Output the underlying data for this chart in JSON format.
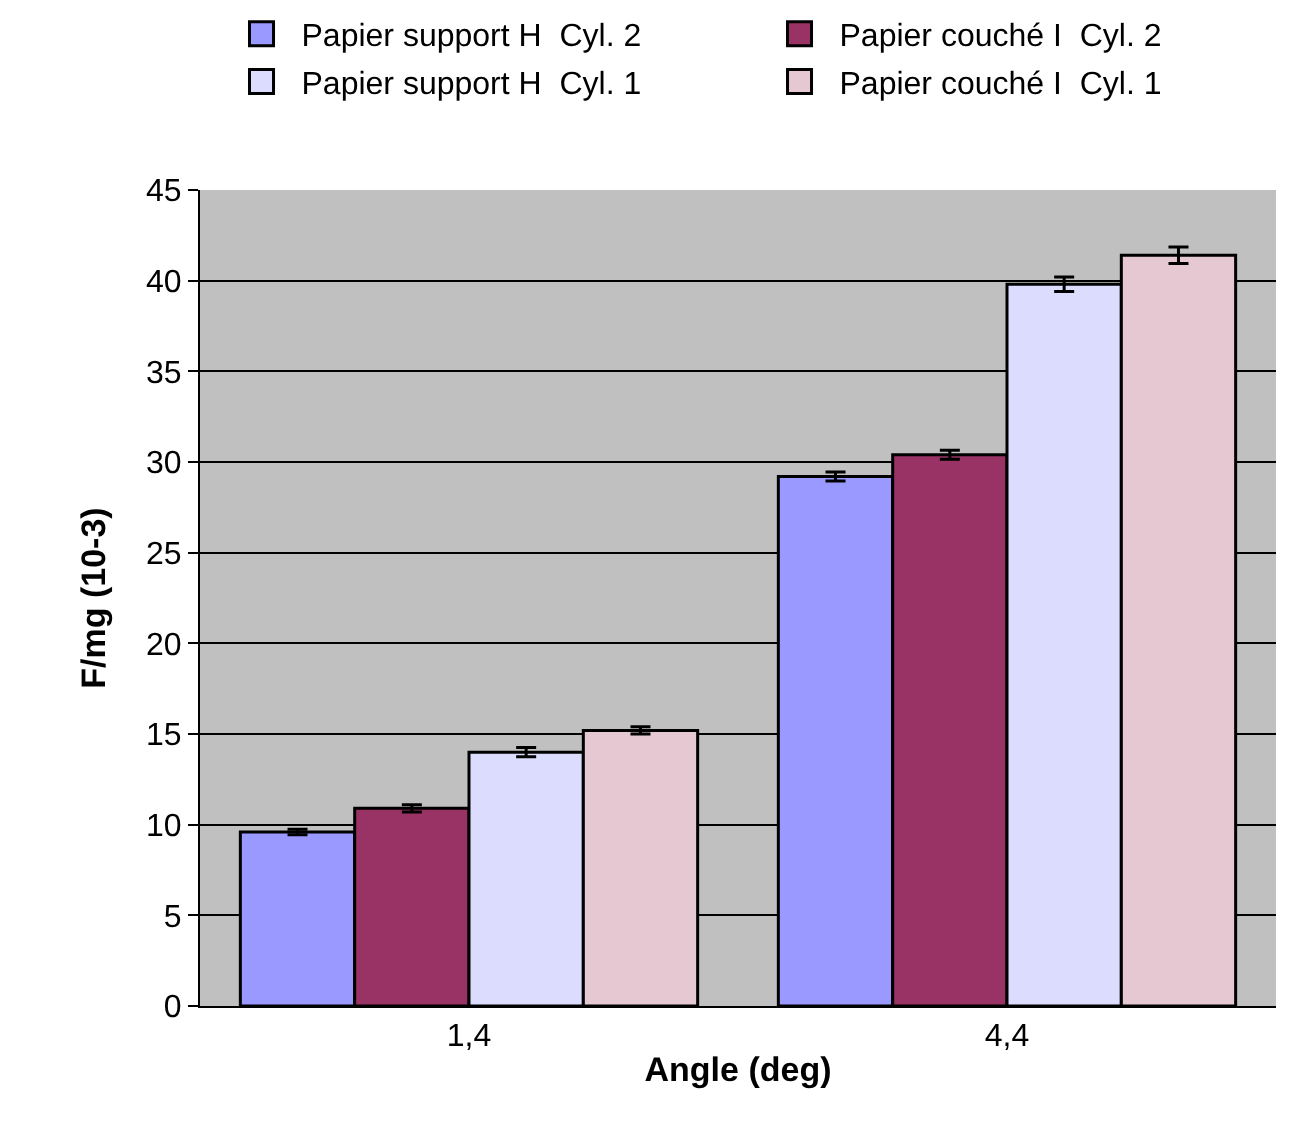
{
  "chart_data": {
    "type": "bar",
    "xlabel": "Angle (deg)",
    "ylabel": "F/mg (10-3)",
    "categories": [
      "1,4",
      "4,4"
    ],
    "series": [
      {
        "name": "Papier support H  Cyl. 2",
        "color": "#9999ff",
        "values": [
          9.6,
          29.2
        ],
        "errors": [
          0.15,
          0.25
        ]
      },
      {
        "name": "Papier couché I  Cyl. 2",
        "color": "#993366",
        "values": [
          10.9,
          30.4
        ],
        "errors": [
          0.2,
          0.25
        ]
      },
      {
        "name": "Papier support H  Cyl. 1",
        "color": "#dcdcff",
        "values": [
          14.0,
          39.8
        ],
        "errors": [
          0.25,
          0.4
        ]
      },
      {
        "name": "Papier couché I  Cyl. 1",
        "color": "#e6c8d2",
        "values": [
          15.2,
          41.4
        ],
        "errors": [
          0.2,
          0.45
        ]
      }
    ],
    "ylim": [
      0,
      45
    ],
    "yticks": [
      0,
      5,
      10,
      15,
      20,
      25,
      30,
      35,
      40,
      45
    ],
    "grid": "y",
    "legend": "top"
  }
}
